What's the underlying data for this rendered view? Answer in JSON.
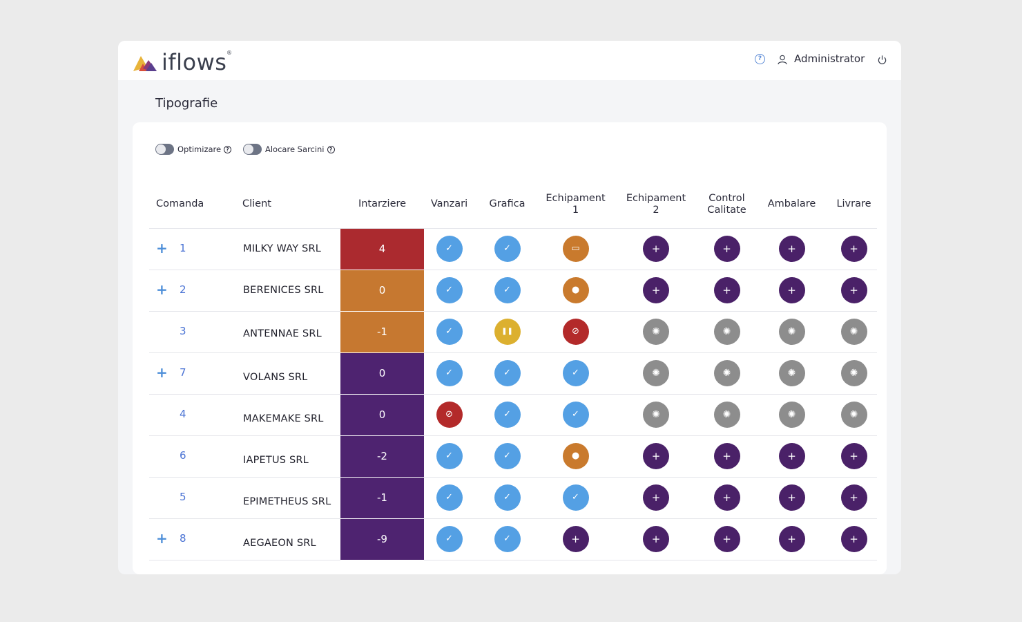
{
  "app": {
    "logo_text": "iflows",
    "logo_reg": "®"
  },
  "header": {
    "help_icon": "question-circle-icon",
    "user_name": "Administrator",
    "help_glyph": "?"
  },
  "page": {
    "title": "Tipografie"
  },
  "toggles": [
    {
      "label": "Optimizare",
      "hint": "?",
      "on": false
    },
    {
      "label": "Alocare Sarcini",
      "hint": "?",
      "on": false
    }
  ],
  "table": {
    "columns": {
      "comanda": "Comanda",
      "client": "Client",
      "intarziere": "Intarziere",
      "vanzari": "Vanzari",
      "grafica": "Grafica",
      "echipament1_a": "Echipament",
      "echipament1_b": "1",
      "echipament2_a": "Echipament",
      "echipament2_b": "2",
      "control_a": "Control",
      "control_b": "Calitate",
      "ambalare": "Ambalare",
      "livrare": "Livrare"
    },
    "rows": [
      {
        "expand": "+",
        "order": "1",
        "client": "MILKY WAY SRL",
        "delay": "4",
        "delay_color": "#ab2a2f",
        "status": [
          "check",
          "check",
          "screen",
          "plus",
          "plus",
          "plus",
          "plus"
        ]
      },
      {
        "expand": "+",
        "order": "2",
        "client": "BERENICES SRL",
        "delay": "0",
        "delay_color": "#c67830",
        "status": [
          "check",
          "check",
          "person",
          "plus",
          "plus",
          "plus",
          "plus"
        ]
      },
      {
        "expand": "",
        "order": "3",
        "client": "ANTENNAE SRL",
        "delay": "-1",
        "delay_color": "#c67830",
        "status": [
          "check",
          "pause",
          "blocked",
          "wait",
          "wait",
          "wait",
          "wait"
        ]
      },
      {
        "expand": "+",
        "order": "7",
        "client": "VOLANS SRL",
        "delay": "0",
        "delay_color": "#4e2370",
        "status": [
          "check",
          "check",
          "check",
          "wait",
          "wait",
          "wait",
          "wait"
        ]
      },
      {
        "expand": "",
        "order": "4",
        "client": "MAKEMAKE SRL",
        "delay": "0",
        "delay_color": "#4e2370",
        "status": [
          "blocked",
          "check",
          "check",
          "wait",
          "wait",
          "wait",
          "wait"
        ]
      },
      {
        "expand": "",
        "order": "6",
        "client": "IAPETUS SRL",
        "delay": "-2",
        "delay_color": "#4e2370",
        "status": [
          "check",
          "check",
          "person",
          "plus",
          "plus",
          "plus",
          "plus"
        ]
      },
      {
        "expand": "",
        "order": "5",
        "client": "EPIMETHEUS SRL",
        "delay": "-1",
        "delay_color": "#4e2370",
        "status": [
          "check",
          "check",
          "check",
          "plus",
          "plus",
          "plus",
          "plus"
        ]
      },
      {
        "expand": "+",
        "order": "8",
        "client": "AEGAEON SRL",
        "delay": "-9",
        "delay_color": "#4e2370",
        "status": [
          "check",
          "check",
          "plus",
          "plus",
          "plus",
          "plus",
          "plus"
        ]
      }
    ]
  },
  "status_glyphs": {
    "check": "✓",
    "plus": "+",
    "wait": "✺",
    "blocked": "⊘",
    "screen": "▭",
    "person": "●",
    "pause": "❚❚"
  },
  "status_icons": {
    "check": "check-icon",
    "plus": "plus-icon",
    "wait": "spinner-icon",
    "blocked": "blocked-icon",
    "screen": "monitor-icon",
    "person": "person-icon",
    "pause": "pause-icon"
  }
}
